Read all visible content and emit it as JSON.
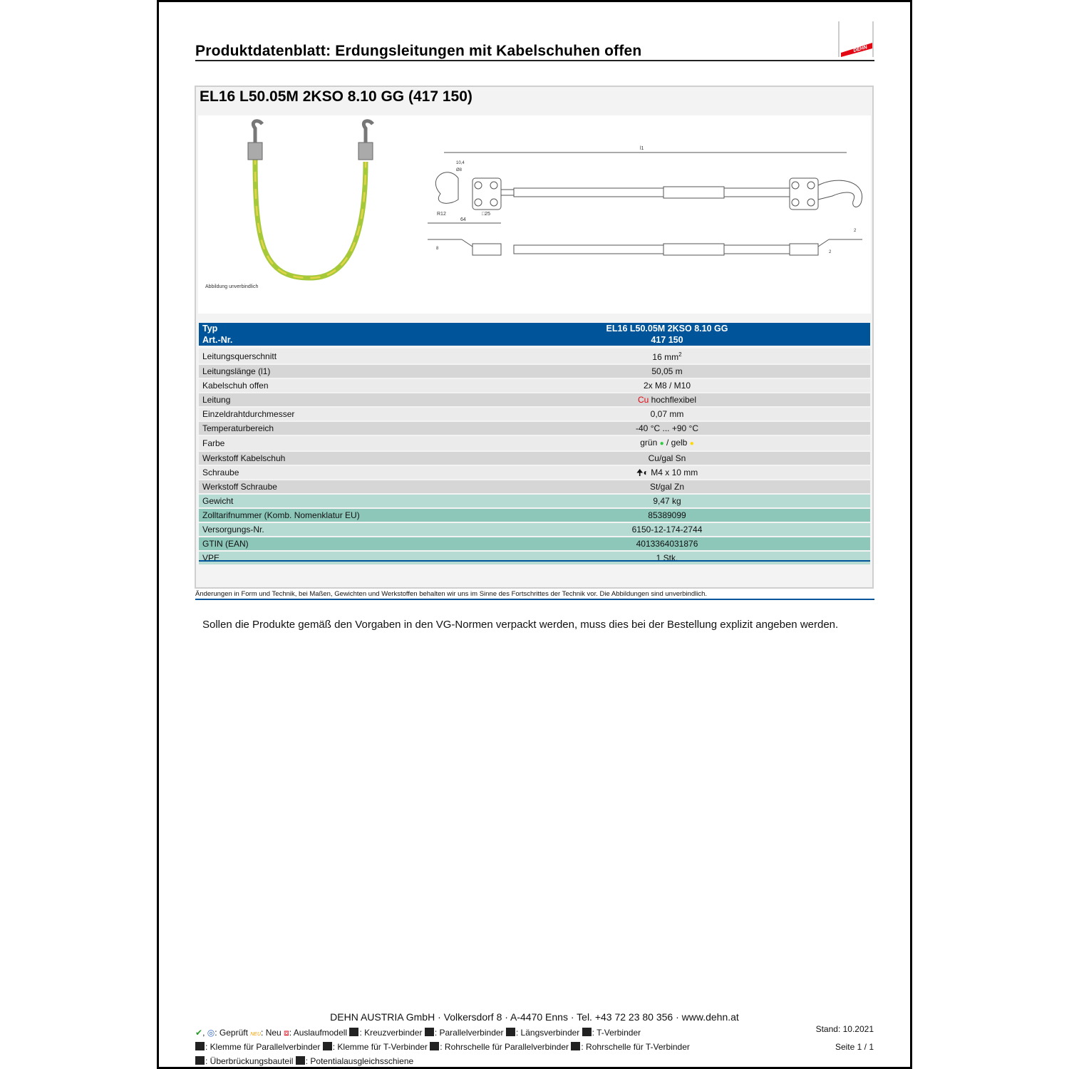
{
  "header": {
    "title": "Produktdatenblatt: Erdungsleitungen mit Kabelschuhen offen",
    "logo_text": "DEHN"
  },
  "product": {
    "title": "EL16 L50.05M 2KSO 8.10 GG (417 150)",
    "image_caption": "Abbildung unverbindlich"
  },
  "drawing": {
    "l1": "l1",
    "d104": "10,4",
    "d8": "Ø8",
    "r12": "R12",
    "sq25": "□25",
    "d64": "64",
    "h8": "8",
    "t2a": "2",
    "t2b": "2"
  },
  "table": {
    "header": [
      {
        "label": "Typ",
        "value": "EL16 L50.05M 2KSO 8.10 GG"
      },
      {
        "label": "Art.-Nr.",
        "value": "417 150"
      }
    ],
    "rows": [
      {
        "label": "Leitungsquerschnitt",
        "value": "16 mm",
        "sup": "2"
      },
      {
        "label": "Leitungslänge (l1)",
        "value": "50,05 m"
      },
      {
        "label": "Kabelschuh offen",
        "value": "2x M8 / M10"
      },
      {
        "label": "Leitung",
        "prefix": "Cu",
        "value": " hochflexibel"
      },
      {
        "label": "Einzeldrahtdurchmesser",
        "value": "0,07 mm"
      },
      {
        "label": "Temperaturbereich",
        "value": "-40 °C ... +90 °C"
      },
      {
        "label": "Farbe",
        "value_a": "grün",
        "value_b": " / gelb"
      },
      {
        "label": "Werkstoff Kabelschuh",
        "value": "Cu/gal Sn"
      },
      {
        "label": "Schraube",
        "value": "M4 x 10 mm"
      },
      {
        "label": "Werkstoff Schraube",
        "value": "St/gal Zn"
      },
      {
        "label": "Gewicht",
        "value": "9,47 kg"
      },
      {
        "label": "Zolltarifnummer (Komb. Nomenklatur EU)",
        "value": "85389099"
      },
      {
        "label": "Versorgungs-Nr.",
        "value": "6150-12-174-2744"
      },
      {
        "label": "GTIN (EAN)",
        "value": "4013364031876"
      },
      {
        "label": "VPE",
        "value": "1 Stk."
      }
    ]
  },
  "colors": {
    "header_blue": "#00549a",
    "cu_red": "#e30613",
    "green": "#2ecc40",
    "yellow": "#ffd800",
    "teal_light": "#b6dbd3",
    "teal_dark": "#8dc7b9"
  },
  "disclaimer": "Änderungen in Form und Technik, bei Maßen, Gewichten und Werkstoffen behalten wir uns im Sinne des Fortschrittes der Technik vor. Die Abbildungen sind unverbindlich.",
  "note": "Sollen die Produkte gemäß den Vorgaben in den VG-Normen verpackt werden, muss dies bei der Bestellung explizit angeben werden.",
  "footer": {
    "address": "DEHN AUSTRIA GmbH · Volkersdorf 8 · A-4470 Enns · Tel. +43 72 23 80 356 · www.dehn.at",
    "legend1": [
      ": Geprüft",
      ": Neu",
      ": Auslaufmodell",
      ": Kreuzverbinder",
      ": Parallelverbinder",
      ": Längsverbinder",
      ": T-Verbinder"
    ],
    "legend2": [
      ": Klemme für Parallelverbinder",
      ": Klemme für T-Verbinder",
      ": Rohrschelle für Parallelverbinder",
      ": Rohrschelle für T-Verbinder"
    ],
    "legend3": [
      ": Überbrückungsbauteil",
      ": Potentialausgleichsschiene"
    ],
    "neu_badge": "NEU",
    "stand": "Stand: 10.2021",
    "page": "Seite 1 / 1"
  }
}
